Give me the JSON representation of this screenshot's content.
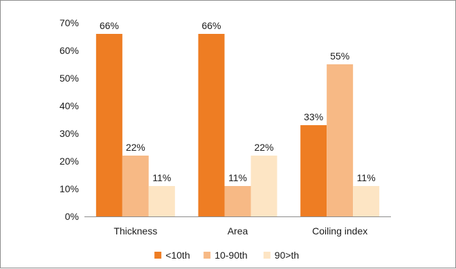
{
  "chart_data": {
    "type": "bar",
    "categories": [
      "Thickness",
      "Area",
      "Coiling index"
    ],
    "series": [
      {
        "name": "<10th",
        "values": [
          66,
          66,
          33
        ],
        "labels": [
          "66%",
          "66%",
          "33%"
        ],
        "color": "#ee7d23"
      },
      {
        "name": "10-90th",
        "values": [
          22,
          11,
          55
        ],
        "labels": [
          "22%",
          "11%",
          "55%"
        ],
        "color": "#f7b985"
      },
      {
        "name": "90>th",
        "values": [
          11,
          22,
          11
        ],
        "labels": [
          "11%",
          "22%",
          "11%"
        ],
        "color": "#fde5c4"
      }
    ],
    "y_ticks": [
      "0%",
      "10%",
      "20%",
      "30%",
      "40%",
      "50%",
      "60%",
      "70%"
    ],
    "ylim": [
      0,
      70
    ],
    "title": "",
    "xlabel": "",
    "ylabel": "",
    "grid": false,
    "legend_position": "bottom"
  }
}
